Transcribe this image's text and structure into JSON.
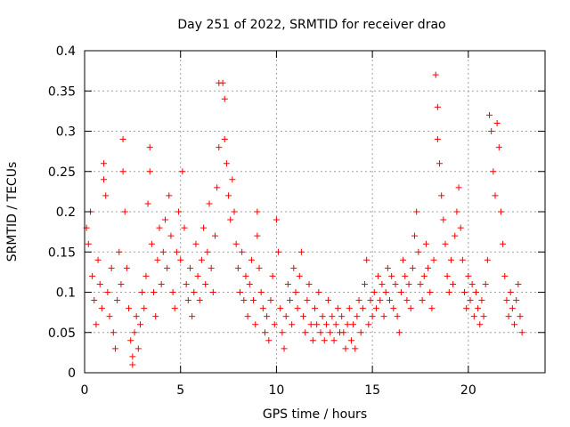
{
  "chart_data": {
    "type": "scatter",
    "title": "Day 251 of 2022, SRMTID for receiver drao",
    "xlabel": "GPS time / hours",
    "ylabel": "SRMTID / TECUs",
    "xlim": [
      0,
      24
    ],
    "ylim": [
      0,
      0.4
    ],
    "xticks": [
      0,
      5,
      10,
      15,
      20
    ],
    "yticks": [
      0,
      0.05,
      0.1,
      0.15,
      0.2,
      0.25,
      0.3,
      0.35,
      0.4
    ],
    "xtick_labels": [
      "0",
      "5",
      "10",
      "15",
      "20"
    ],
    "ytick_labels": [
      "0",
      "0.05",
      "0.1",
      "0.15",
      "0.2",
      "0.25",
      "0.3",
      "0.35",
      "0.4"
    ],
    "grid": true,
    "marker": "+",
    "marker_color": "#ff0000",
    "series": [
      {
        "name": "SRMTID",
        "points": [
          [
            0.1,
            0.18
          ],
          [
            0.2,
            0.16
          ],
          [
            0.3,
            0.2
          ],
          [
            0.4,
            0.12
          ],
          [
            0.5,
            0.09
          ],
          [
            0.6,
            0.06
          ],
          [
            0.7,
            0.14
          ],
          [
            0.8,
            0.11
          ],
          [
            0.9,
            0.08
          ],
          [
            1.0,
            0.26
          ],
          [
            1.0,
            0.24
          ],
          [
            1.1,
            0.22
          ],
          [
            1.2,
            0.1
          ],
          [
            1.3,
            0.07
          ],
          [
            1.4,
            0.13
          ],
          [
            1.5,
            0.05
          ],
          [
            1.6,
            0.03
          ],
          [
            1.7,
            0.09
          ],
          [
            1.8,
            0.15
          ],
          [
            1.9,
            0.11
          ],
          [
            2.0,
            0.29
          ],
          [
            2.0,
            0.25
          ],
          [
            2.1,
            0.2
          ],
          [
            2.2,
            0.13
          ],
          [
            2.3,
            0.08
          ],
          [
            2.4,
            0.04
          ],
          [
            2.5,
            0.02
          ],
          [
            2.5,
            0.01
          ],
          [
            2.6,
            0.05
          ],
          [
            2.7,
            0.07
          ],
          [
            2.8,
            0.03
          ],
          [
            2.9,
            0.06
          ],
          [
            3.0,
            0.1
          ],
          [
            3.1,
            0.08
          ],
          [
            3.2,
            0.12
          ],
          [
            3.3,
            0.21
          ],
          [
            3.4,
            0.25
          ],
          [
            3.4,
            0.28
          ],
          [
            3.5,
            0.16
          ],
          [
            3.6,
            0.1
          ],
          [
            3.7,
            0.07
          ],
          [
            3.8,
            0.14
          ],
          [
            3.9,
            0.18
          ],
          [
            4.0,
            0.11
          ],
          [
            4.1,
            0.15
          ],
          [
            4.2,
            0.19
          ],
          [
            4.3,
            0.13
          ],
          [
            4.4,
            0.22
          ],
          [
            4.5,
            0.17
          ],
          [
            4.6,
            0.1
          ],
          [
            4.7,
            0.08
          ],
          [
            4.8,
            0.15
          ],
          [
            4.9,
            0.2
          ],
          [
            5.0,
            0.14
          ],
          [
            5.1,
            0.25
          ],
          [
            5.2,
            0.18
          ],
          [
            5.3,
            0.11
          ],
          [
            5.4,
            0.09
          ],
          [
            5.5,
            0.13
          ],
          [
            5.6,
            0.07
          ],
          [
            5.7,
            0.1
          ],
          [
            5.8,
            0.16
          ],
          [
            5.9,
            0.12
          ],
          [
            6.0,
            0.09
          ],
          [
            6.1,
            0.14
          ],
          [
            6.2,
            0.18
          ],
          [
            6.3,
            0.11
          ],
          [
            6.4,
            0.15
          ],
          [
            6.5,
            0.21
          ],
          [
            6.6,
            0.13
          ],
          [
            6.7,
            0.1
          ],
          [
            6.8,
            0.17
          ],
          [
            6.9,
            0.23
          ],
          [
            7.0,
            0.28
          ],
          [
            7.0,
            0.36
          ],
          [
            7.2,
            0.36
          ],
          [
            7.3,
            0.34
          ],
          [
            7.3,
            0.29
          ],
          [
            7.4,
            0.26
          ],
          [
            7.5,
            0.22
          ],
          [
            7.6,
            0.19
          ],
          [
            7.7,
            0.24
          ],
          [
            7.8,
            0.2
          ],
          [
            7.9,
            0.16
          ],
          [
            8.0,
            0.13
          ],
          [
            8.1,
            0.1
          ],
          [
            8.2,
            0.15
          ],
          [
            8.3,
            0.09
          ],
          [
            8.4,
            0.12
          ],
          [
            8.5,
            0.07
          ],
          [
            8.6,
            0.11
          ],
          [
            8.7,
            0.14
          ],
          [
            8.8,
            0.09
          ],
          [
            8.9,
            0.06
          ],
          [
            9.0,
            0.17
          ],
          [
            9.0,
            0.2
          ],
          [
            9.1,
            0.13
          ],
          [
            9.2,
            0.1
          ],
          [
            9.3,
            0.08
          ],
          [
            9.4,
            0.05
          ],
          [
            9.5,
            0.07
          ],
          [
            9.6,
            0.04
          ],
          [
            9.7,
            0.09
          ],
          [
            9.8,
            0.12
          ],
          [
            9.9,
            0.06
          ],
          [
            10.0,
            0.19
          ],
          [
            10.1,
            0.15
          ],
          [
            10.2,
            0.08
          ],
          [
            10.3,
            0.05
          ],
          [
            10.4,
            0.03
          ],
          [
            10.5,
            0.07
          ],
          [
            10.6,
            0.11
          ],
          [
            10.7,
            0.09
          ],
          [
            10.8,
            0.06
          ],
          [
            10.9,
            0.13
          ],
          [
            11.0,
            0.1
          ],
          [
            11.1,
            0.08
          ],
          [
            11.2,
            0.12
          ],
          [
            11.3,
            0.15
          ],
          [
            11.4,
            0.07
          ],
          [
            11.5,
            0.05
          ],
          [
            11.6,
            0.09
          ],
          [
            11.7,
            0.11
          ],
          [
            11.8,
            0.06
          ],
          [
            11.9,
            0.04
          ],
          [
            12.0,
            0.08
          ],
          [
            12.1,
            0.06
          ],
          [
            12.2,
            0.1
          ],
          [
            12.3,
            0.05
          ],
          [
            12.4,
            0.07
          ],
          [
            12.5,
            0.04
          ],
          [
            12.6,
            0.06
          ],
          [
            12.7,
            0.09
          ],
          [
            12.8,
            0.05
          ],
          [
            12.9,
            0.07
          ],
          [
            13.0,
            0.04
          ],
          [
            13.1,
            0.06
          ],
          [
            13.2,
            0.08
          ],
          [
            13.3,
            0.05
          ],
          [
            13.4,
            0.07
          ],
          [
            13.5,
            0.05
          ],
          [
            13.6,
            0.03
          ],
          [
            13.7,
            0.06
          ],
          [
            13.8,
            0.08
          ],
          [
            13.9,
            0.04
          ],
          [
            14.0,
            0.06
          ],
          [
            14.1,
            0.03
          ],
          [
            14.2,
            0.07
          ],
          [
            14.3,
            0.09
          ],
          [
            14.4,
            0.05
          ],
          [
            14.5,
            0.08
          ],
          [
            14.6,
            0.11
          ],
          [
            14.7,
            0.14
          ],
          [
            14.8,
            0.06
          ],
          [
            14.9,
            0.09
          ],
          [
            15.0,
            0.07
          ],
          [
            15.1,
            0.1
          ],
          [
            15.2,
            0.08
          ],
          [
            15.3,
            0.12
          ],
          [
            15.4,
            0.09
          ],
          [
            15.5,
            0.11
          ],
          [
            15.6,
            0.07
          ],
          [
            15.7,
            0.1
          ],
          [
            15.8,
            0.13
          ],
          [
            15.9,
            0.09
          ],
          [
            16.0,
            0.12
          ],
          [
            16.1,
            0.08
          ],
          [
            16.2,
            0.11
          ],
          [
            16.3,
            0.07
          ],
          [
            16.4,
            0.05
          ],
          [
            16.5,
            0.1
          ],
          [
            16.6,
            0.14
          ],
          [
            16.7,
            0.12
          ],
          [
            16.8,
            0.09
          ],
          [
            16.9,
            0.11
          ],
          [
            17.0,
            0.08
          ],
          [
            17.1,
            0.13
          ],
          [
            17.2,
            0.17
          ],
          [
            17.3,
            0.2
          ],
          [
            17.4,
            0.15
          ],
          [
            17.5,
            0.11
          ],
          [
            17.6,
            0.09
          ],
          [
            17.7,
            0.12
          ],
          [
            17.8,
            0.16
          ],
          [
            17.9,
            0.13
          ],
          [
            18.0,
            0.1
          ],
          [
            18.1,
            0.08
          ],
          [
            18.2,
            0.14
          ],
          [
            18.3,
            0.37
          ],
          [
            18.4,
            0.33
          ],
          [
            18.4,
            0.29
          ],
          [
            18.5,
            0.26
          ],
          [
            18.6,
            0.22
          ],
          [
            18.7,
            0.19
          ],
          [
            18.8,
            0.16
          ],
          [
            18.9,
            0.12
          ],
          [
            19.0,
            0.1
          ],
          [
            19.1,
            0.14
          ],
          [
            19.2,
            0.11
          ],
          [
            19.3,
            0.17
          ],
          [
            19.4,
            0.2
          ],
          [
            19.5,
            0.23
          ],
          [
            19.6,
            0.18
          ],
          [
            19.7,
            0.14
          ],
          [
            19.8,
            0.1
          ],
          [
            19.9,
            0.08
          ],
          [
            20.0,
            0.12
          ],
          [
            20.1,
            0.09
          ],
          [
            20.2,
            0.11
          ],
          [
            20.3,
            0.07
          ],
          [
            20.4,
            0.1
          ],
          [
            20.5,
            0.08
          ],
          [
            20.6,
            0.06
          ],
          [
            20.7,
            0.09
          ],
          [
            20.8,
            0.07
          ],
          [
            20.9,
            0.11
          ],
          [
            21.0,
            0.14
          ],
          [
            21.1,
            0.32
          ],
          [
            21.2,
            0.3
          ],
          [
            21.3,
            0.25
          ],
          [
            21.4,
            0.22
          ],
          [
            21.5,
            0.31
          ],
          [
            21.6,
            0.28
          ],
          [
            21.7,
            0.2
          ],
          [
            21.8,
            0.16
          ],
          [
            21.9,
            0.12
          ],
          [
            22.0,
            0.09
          ],
          [
            22.1,
            0.07
          ],
          [
            22.2,
            0.1
          ],
          [
            22.3,
            0.08
          ],
          [
            22.4,
            0.06
          ],
          [
            22.5,
            0.09
          ],
          [
            22.6,
            0.11
          ],
          [
            22.7,
            0.07
          ],
          [
            22.8,
            0.05
          ]
        ]
      }
    ]
  }
}
